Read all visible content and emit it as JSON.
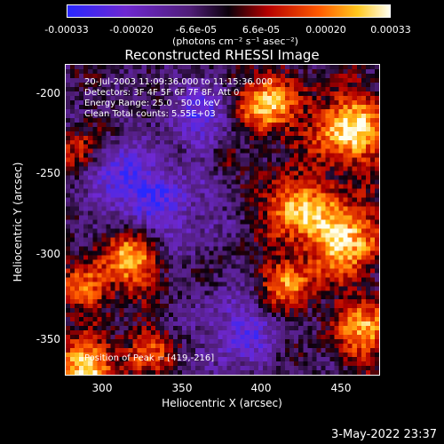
{
  "colorbar": {
    "ticks": [
      "-0.00033",
      "-0.00020",
      "-6.6e-05",
      "6.6e-05",
      "0.00020",
      "0.00033"
    ],
    "units": "(photons cm⁻² s⁻¹ asec⁻²)"
  },
  "title": "Reconstructed RHESSI Image",
  "annotations": {
    "time": "20-Jul-2003 11:09:36.000 to 11:15:36.000",
    "detectors": "Detectors: 3F 4F 5F 6F 7F 8F, Att 0",
    "energy": "Energy Range: 25.0 - 50.0 keV",
    "method": "Clean     Total counts: 5.55E+03",
    "peak": "Position of Peak = [419,-216]"
  },
  "axes": {
    "xlabel": "Heliocentric X (arcsec)",
    "ylabel": "Heliocentric Y (arcsec)",
    "xticks": [
      "300",
      "350",
      "400",
      "450"
    ],
    "yticks": [
      "-200",
      "-250",
      "-300",
      "-350"
    ]
  },
  "timestamp": "3-May-2022 23:37"
}
